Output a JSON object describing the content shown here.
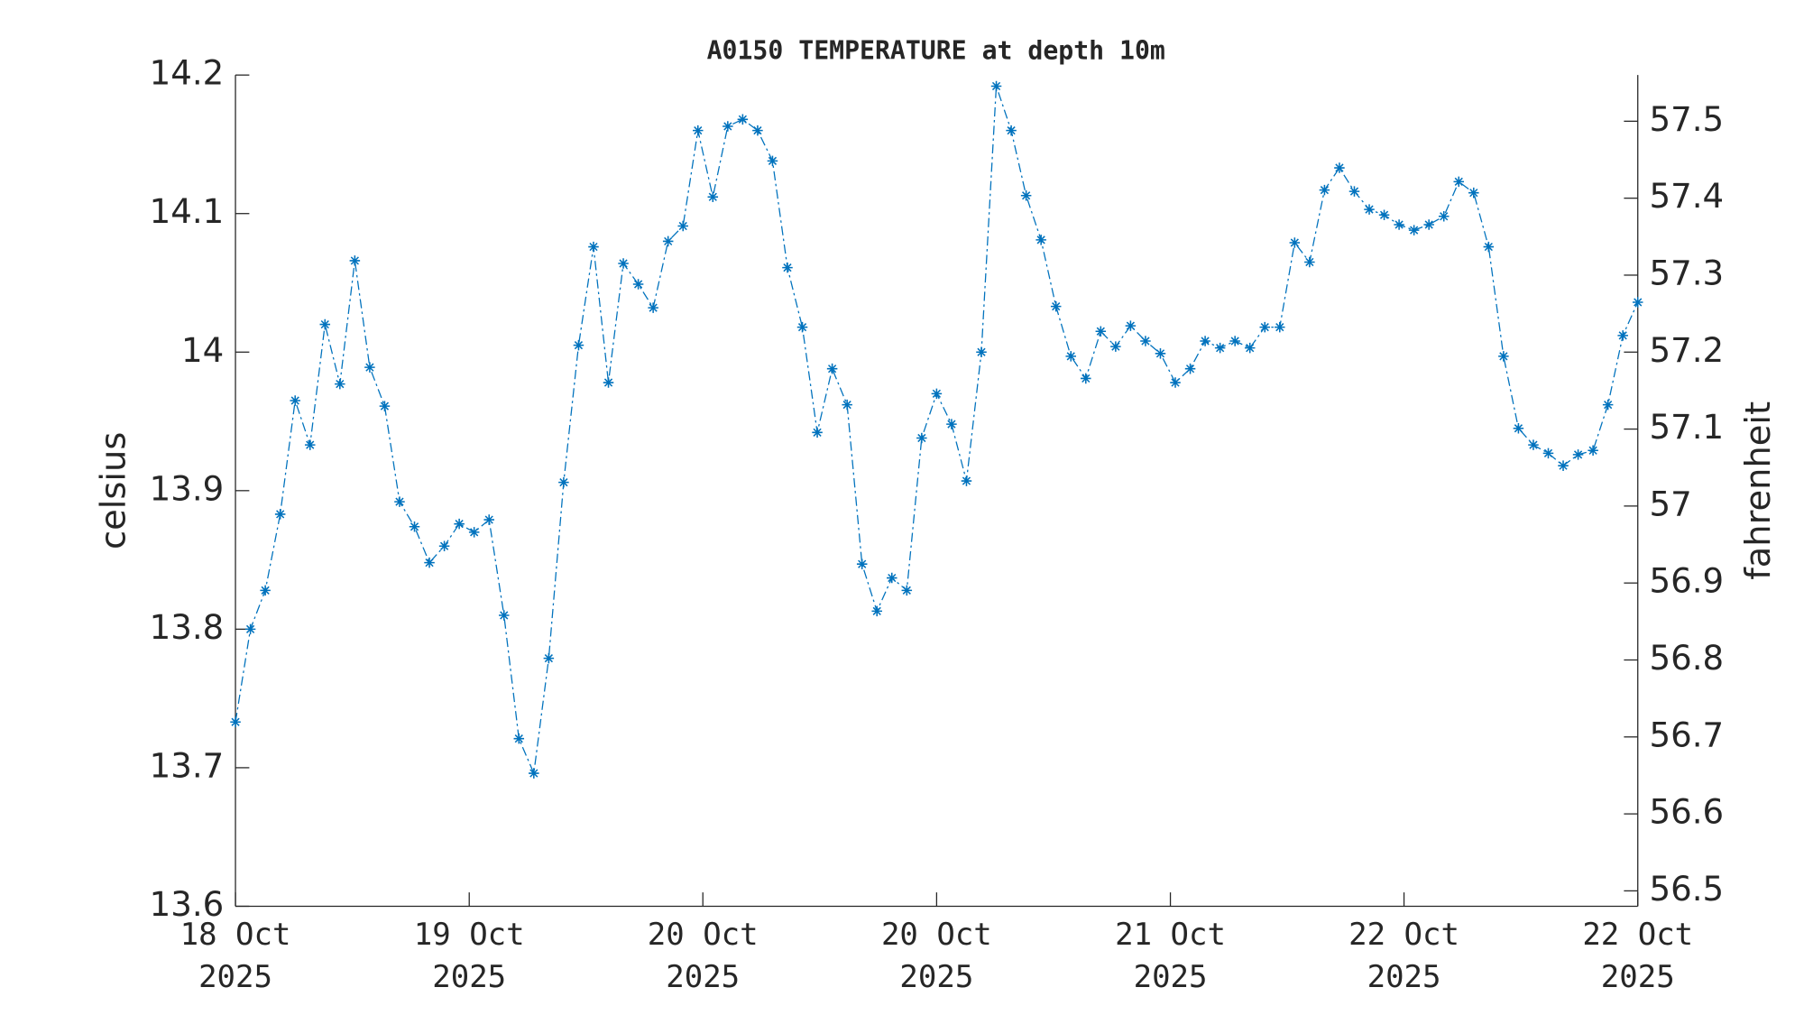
{
  "chart_data": {
    "type": "line",
    "title": "A0150 TEMPERATURE at depth 10m",
    "y_label": "celsius",
    "y2_label": "fahrenheit",
    "x": [
      0,
      1,
      2,
      3,
      4,
      5,
      6,
      7,
      8,
      9,
      10,
      11,
      12,
      13,
      14,
      15,
      16,
      17,
      18,
      19,
      20,
      21,
      22,
      23,
      24,
      25,
      26,
      27,
      28,
      29,
      30,
      31,
      32,
      33,
      34,
      35,
      36,
      37,
      38,
      39,
      40,
      41,
      42,
      43,
      44,
      45,
      46,
      47,
      48,
      49,
      50,
      51,
      52,
      53,
      54,
      55,
      56,
      57,
      58,
      59,
      60,
      61,
      62,
      63,
      64,
      65,
      66,
      67,
      68,
      69,
      70,
      71,
      72,
      73,
      74,
      75,
      76,
      77,
      78,
      79,
      80,
      81,
      82,
      83,
      84,
      85,
      86,
      87,
      88,
      89,
      90,
      91,
      92,
      93,
      94
    ],
    "series": [
      {
        "name": "celsius",
        "color": "#0072bd",
        "values": [
          13.733,
          13.8,
          13.828,
          13.883,
          13.965,
          13.933,
          14.02,
          13.977,
          14.066,
          13.989,
          13.961,
          13.892,
          13.874,
          13.848,
          13.86,
          13.876,
          13.87,
          13.879,
          13.81,
          13.721,
          13.696,
          13.779,
          13.906,
          14.005,
          14.076,
          13.978,
          14.064,
          14.049,
          14.032,
          14.08,
          14.091,
          14.16,
          14.112,
          14.163,
          14.168,
          14.16,
          14.138,
          14.061,
          14.018,
          13.942,
          13.988,
          13.962,
          13.847,
          13.813,
          13.837,
          13.828,
          13.938,
          13.97,
          13.948,
          13.907,
          14.0,
          14.192,
          14.16,
          14.113,
          14.081,
          14.033,
          13.997,
          13.981,
          14.015,
          14.004,
          14.019,
          14.008,
          13.999,
          13.978,
          13.988,
          14.008,
          14.003,
          14.008,
          14.003,
          14.018,
          14.018,
          14.079,
          14.065,
          14.117,
          14.133,
          14.116,
          14.103,
          14.099,
          14.092,
          14.088,
          14.092,
          14.098,
          14.123,
          14.115,
          14.076,
          13.997,
          13.945,
          13.933,
          13.927,
          13.918,
          13.926,
          13.929,
          13.962,
          14.012,
          14.036
        ]
      }
    ],
    "xlim": [
      0,
      94
    ],
    "xticks": [
      {
        "value": 0,
        "label": "18 Oct\n2025"
      },
      {
        "value": 15.67,
        "label": "19 Oct\n2025"
      },
      {
        "value": 31.33,
        "label": "20 Oct\n2025"
      },
      {
        "value": 47,
        "label": "20 Oct\n2025"
      },
      {
        "value": 62.67,
        "label": "21 Oct\n2025"
      },
      {
        "value": 78.33,
        "label": "22 Oct\n2025"
      },
      {
        "value": 94,
        "label": "22 Oct\n2025"
      }
    ],
    "ylim": [
      13.6,
      14.2
    ],
    "yticks": [
      13.6,
      13.7,
      13.8,
      13.9,
      14,
      14.1,
      14.2
    ],
    "y2lim": [
      56.48,
      57.56
    ],
    "y2ticks": [
      56.5,
      56.6,
      56.7,
      56.8,
      56.9,
      57,
      57.1,
      57.2,
      57.3,
      57.4,
      57.5
    ]
  }
}
